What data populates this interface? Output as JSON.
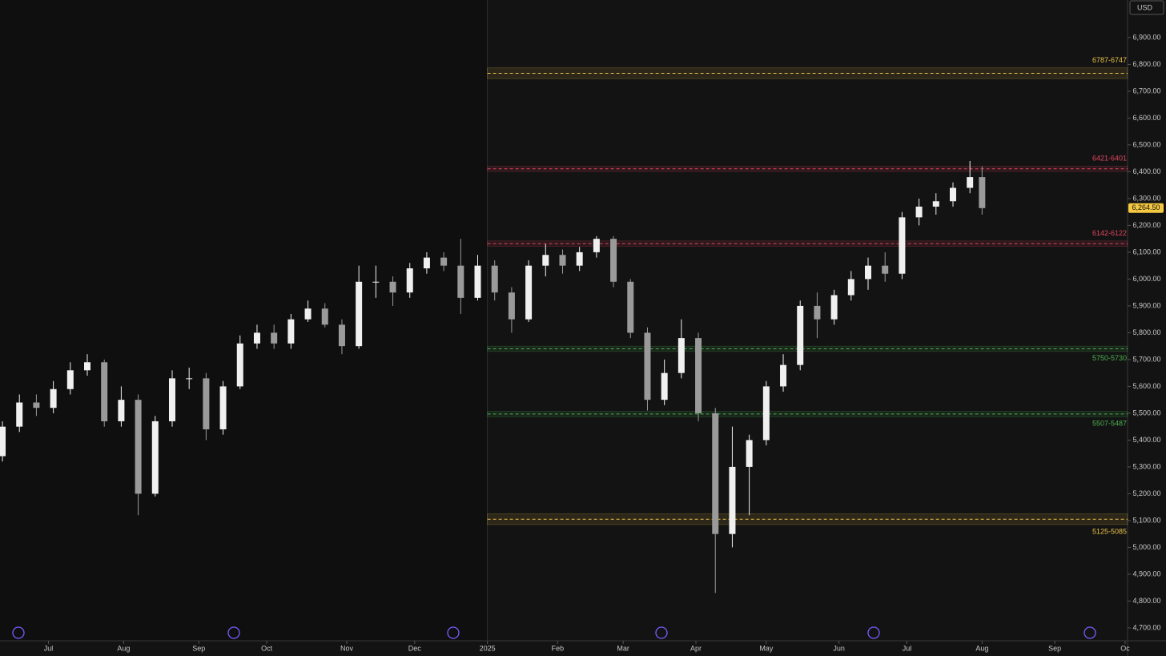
{
  "chart_data": {
    "type": "candlestick",
    "currency": "USD",
    "x": [
      1,
      8,
      15,
      22,
      29,
      36,
      43,
      50,
      57,
      64,
      71,
      78,
      85,
      92,
      99,
      106,
      113,
      120,
      127,
      134,
      141,
      148,
      155,
      162,
      169,
      176,
      183,
      190,
      197,
      204,
      211,
      218,
      225,
      232,
      239,
      246,
      253,
      260,
      267,
      274,
      281,
      288,
      295,
      302,
      309,
      316,
      323,
      330,
      337,
      344,
      351,
      358,
      365,
      372,
      379,
      386,
      393,
      400,
      405
    ],
    "open": [
      5340,
      5450,
      5540,
      5520,
      5590,
      5660,
      5690,
      5470,
      5550,
      5200,
      5470,
      5630,
      5630,
      5440,
      5600,
      5760,
      5800,
      5760,
      5850,
      5890,
      5830,
      5750,
      5990,
      5990,
      5950,
      6040,
      6080,
      6050,
      5930,
      6050,
      5950,
      5850,
      6050,
      6090,
      6050,
      6100,
      6150,
      5990,
      5800,
      5550,
      5650,
      5780,
      5500,
      5050,
      5300,
      5400,
      5600,
      5680,
      5900,
      5850,
      5940,
      6000,
      6050,
      6020,
      6230,
      6270,
      6290,
      6340,
      6380
    ],
    "high": [
      5470,
      5570,
      5570,
      5620,
      5690,
      5720,
      5700,
      5600,
      5570,
      5490,
      5660,
      5670,
      5650,
      5620,
      5790,
      5830,
      5830,
      5870,
      5920,
      5910,
      5850,
      6050,
      6050,
      6010,
      6060,
      6100,
      6100,
      6150,
      6090,
      6070,
      5970,
      6070,
      6130,
      6110,
      6120,
      6160,
      6160,
      6000,
      5820,
      5700,
      5850,
      5800,
      5520,
      5450,
      5420,
      5620,
      5720,
      5920,
      5950,
      5960,
      6030,
      6080,
      6100,
      6250,
      6300,
      6320,
      6360,
      6440,
      6420
    ],
    "low": [
      5320,
      5430,
      5490,
      5500,
      5570,
      5640,
      5450,
      5450,
      5120,
      5190,
      5450,
      5590,
      5400,
      5420,
      5590,
      5740,
      5740,
      5740,
      5840,
      5820,
      5720,
      5740,
      5930,
      5900,
      5930,
      6020,
      6030,
      5870,
      5920,
      5920,
      5800,
      5840,
      6010,
      6020,
      6030,
      6080,
      5970,
      5780,
      5510,
      5530,
      5630,
      5470,
      4830,
      5000,
      5120,
      5380,
      5580,
      5660,
      5780,
      5830,
      5920,
      5960,
      5990,
      6000,
      6200,
      6240,
      6270,
      6320,
      6240
    ],
    "close": [
      5450,
      5540,
      5520,
      5590,
      5660,
      5690,
      5470,
      5550,
      5200,
      5470,
      5630,
      5630,
      5440,
      5600,
      5760,
      5800,
      5760,
      5850,
      5890,
      5830,
      5750,
      5990,
      5990,
      5950,
      6040,
      6080,
      6050,
      5930,
      6050,
      5950,
      5850,
      6050,
      6090,
      6050,
      6100,
      6150,
      5990,
      5800,
      5550,
      5650,
      5780,
      5500,
      5050,
      5300,
      5400,
      5600,
      5680,
      5900,
      5850,
      5940,
      6000,
      6050,
      6020,
      6230,
      6270,
      6290,
      6340,
      6380,
      6264.5
    ],
    "last_price": {
      "value": 6264.5,
      "label": "6,264.50"
    },
    "zones": [
      {
        "label": "6787-6747",
        "high": 6787,
        "low": 6747,
        "color": "#e8c04a",
        "start": 201
      },
      {
        "label": "6421-6401",
        "high": 6421,
        "low": 6401,
        "color": "#e0455f",
        "start": 201
      },
      {
        "label": "6142-6122",
        "high": 6142,
        "low": 6122,
        "color": "#e0455f",
        "start": 201
      },
      {
        "label": "5750-5730",
        "high": 5750,
        "low": 5730,
        "color": "#4caf50",
        "start": 201
      },
      {
        "label": "5507-5487",
        "high": 5507,
        "low": 5487,
        "color": "#4caf50",
        "start": 201
      },
      {
        "label": "5125-5085",
        "high": 5125,
        "low": 5085,
        "color": "#e8c04a",
        "start": 201
      }
    ],
    "xlim": [
      0,
      465
    ],
    "xticks": [
      {
        "value": 20,
        "label": "Jul"
      },
      {
        "value": 51,
        "label": "Aug"
      },
      {
        "value": 82,
        "label": "Sep"
      },
      {
        "value": 110,
        "label": "Oct"
      },
      {
        "value": 143,
        "label": "Nov"
      },
      {
        "value": 171,
        "label": "Dec"
      },
      {
        "value": 201,
        "label": "2025"
      },
      {
        "value": 230,
        "label": "Feb"
      },
      {
        "value": 257,
        "label": "Mar"
      },
      {
        "value": 287,
        "label": "Apr"
      },
      {
        "value": 316,
        "label": "May"
      },
      {
        "value": 346,
        "label": "Jun"
      },
      {
        "value": 374,
        "label": "Jul"
      },
      {
        "value": 405,
        "label": "Aug"
      },
      {
        "value": 435,
        "label": "Sep"
      },
      {
        "value": 464,
        "label": "Oc"
      }
    ],
    "ylim": [
      4652,
      7040
    ],
    "yticks": [
      {
        "value": 4700,
        "label": "4,700.00"
      },
      {
        "value": 4800,
        "label": "4,800.00"
      },
      {
        "value": 4900,
        "label": "4,900.00"
      },
      {
        "value": 5000,
        "label": "5,000.00"
      },
      {
        "value": 5100,
        "label": "5,100.00"
      },
      {
        "value": 5200,
        "label": "5,200.00"
      },
      {
        "value": 5300,
        "label": "5,300.00"
      },
      {
        "value": 5400,
        "label": "5,400.00"
      },
      {
        "value": 5500,
        "label": "5,500.00"
      },
      {
        "value": 5600,
        "label": "5,600.00"
      },
      {
        "value": 5700,
        "label": "5,700.00"
      },
      {
        "value": 5800,
        "label": "5,800.00"
      },
      {
        "value": 5900,
        "label": "5,900.00"
      },
      {
        "value": 6000,
        "label": "6,000.00"
      },
      {
        "value": 6100,
        "label": "6,100.00"
      },
      {
        "value": 6200,
        "label": "6,200.00"
      },
      {
        "value": 6300,
        "label": "6,300.00"
      },
      {
        "value": 6400,
        "label": "6,400.00"
      },
      {
        "value": 6500,
        "label": "6,500.00"
      },
      {
        "value": 6600,
        "label": "6,600.00"
      },
      {
        "value": 6700,
        "label": "6,700.00"
      },
      {
        "value": 6800,
        "label": "6,800.00"
      },
      {
        "value": 6900,
        "label": "6,900.00"
      }
    ]
  }
}
